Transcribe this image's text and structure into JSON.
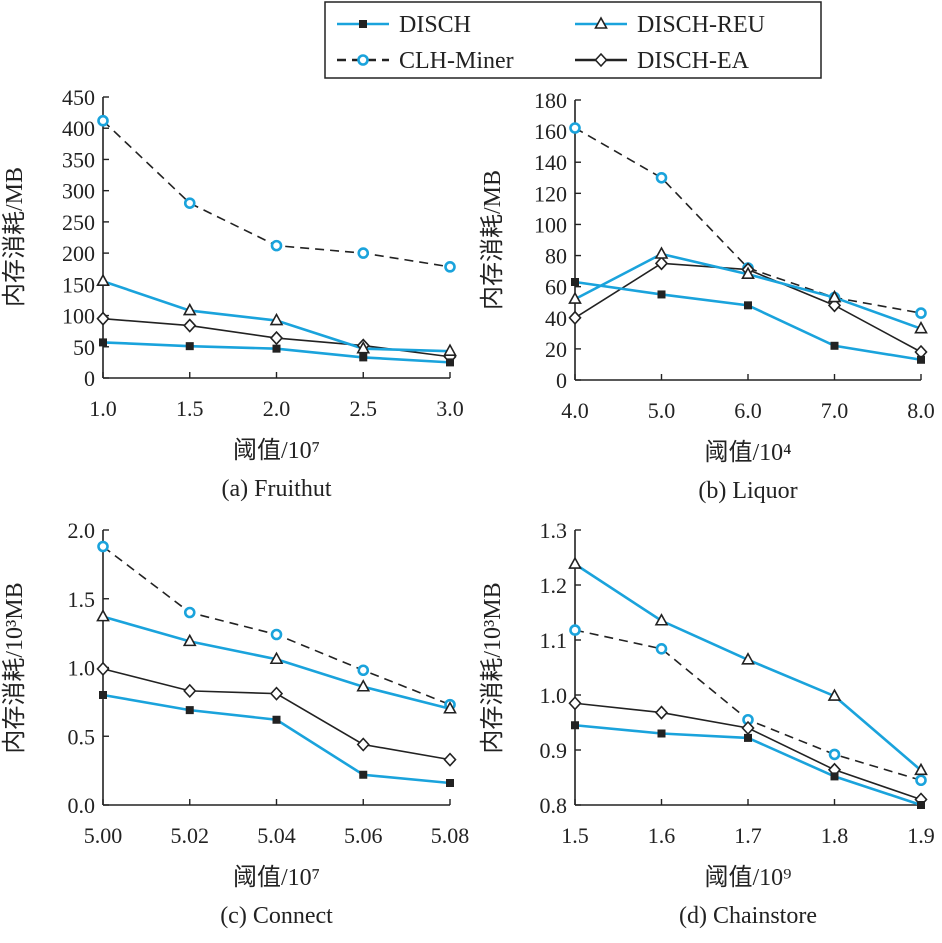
{
  "legend": {
    "items": [
      {
        "label": "DISCH",
        "series": "DISCH"
      },
      {
        "label": "DISCH-REU",
        "series": "DISCH-REU"
      },
      {
        "label": "CLH-Miner",
        "series": "CLH-Miner"
      },
      {
        "label": "DISCH-EA",
        "series": "DISCH-EA"
      }
    ]
  },
  "series_styles": {
    "DISCH": {
      "color": "#1aa3dc",
      "marker": "filled-square",
      "marker_color": "#222222",
      "line": "solid"
    },
    "DISCH-REU": {
      "color": "#1aa3dc",
      "marker": "open-triangle",
      "marker_color": "#222222",
      "line": "solid"
    },
    "CLH-Miner": {
      "color": "#222222",
      "marker": "open-circle",
      "marker_color": "#1aa3dc",
      "line": "dashed"
    },
    "DISCH-EA": {
      "color": "#222222",
      "marker": "open-diamond",
      "marker_color": "#222222",
      "line": "solid"
    }
  },
  "chart_data": [
    {
      "type": "line",
      "caption": "(a) Fruithut",
      "xlabel": "阈值/10⁷",
      "ylabel": "内存消耗/MB",
      "x": [
        1.0,
        1.5,
        2.0,
        2.5,
        3.0
      ],
      "x_tick_labels": [
        "1.0",
        "1.5",
        "2.0",
        "2.5",
        "3.0"
      ],
      "ylim": [
        0,
        450
      ],
      "y_ticks": [
        0,
        50,
        100,
        150,
        200,
        250,
        300,
        350,
        400,
        450
      ],
      "y_tick_labels": [
        "0",
        "50",
        "100",
        "150",
        "200",
        "250",
        "300",
        "350",
        "400",
        "450"
      ],
      "series": [
        {
          "name": "DISCH",
          "values": [
            57,
            51,
            47,
            33,
            25
          ]
        },
        {
          "name": "DISCH-REU",
          "values": [
            155,
            108,
            92,
            47,
            43
          ]
        },
        {
          "name": "CLH-Miner",
          "values": [
            412,
            280,
            212,
            200,
            178
          ]
        },
        {
          "name": "DISCH-EA",
          "values": [
            95,
            84,
            64,
            52,
            34
          ]
        }
      ]
    },
    {
      "type": "line",
      "caption": "(b) Liquor",
      "xlabel": "阈值/10⁴",
      "ylabel": "内存消耗/MB",
      "x": [
        4.0,
        5.0,
        6.0,
        7.0,
        8.0
      ],
      "x_tick_labels": [
        "4.0",
        "5.0",
        "6.0",
        "7.0",
        "8.0"
      ],
      "ylim": [
        0,
        180
      ],
      "y_ticks": [
        0,
        20,
        40,
        60,
        80,
        100,
        120,
        140,
        160,
        180
      ],
      "y_tick_labels": [
        "0",
        "20",
        "40",
        "60",
        "80",
        "100",
        "120",
        "140",
        "160",
        "180"
      ],
      "series": [
        {
          "name": "DISCH",
          "values": [
            63,
            55,
            48,
            22,
            13
          ]
        },
        {
          "name": "DISCH-REU",
          "values": [
            52,
            81,
            68,
            53,
            33
          ]
        },
        {
          "name": "CLH-Miner",
          "values": [
            162,
            130,
            72,
            53,
            43
          ]
        },
        {
          "name": "DISCH-EA",
          "values": [
            40,
            75,
            71,
            48,
            18
          ]
        }
      ]
    },
    {
      "type": "line",
      "caption": "(c) Connect",
      "xlabel": "阈值/10⁷",
      "ylabel": "内存消耗/10³MB",
      "x": [
        5.0,
        5.02,
        5.04,
        5.06,
        5.08
      ],
      "x_tick_labels": [
        "5.00",
        "5.02",
        "5.04",
        "5.06",
        "5.08"
      ],
      "ylim": [
        0,
        2.0
      ],
      "y_ticks": [
        0,
        0.5,
        1.0,
        1.5,
        2.0
      ],
      "y_tick_labels": [
        "0.0",
        "0.5",
        "1.0",
        "1.5",
        "2.0"
      ],
      "series": [
        {
          "name": "DISCH",
          "values": [
            0.8,
            0.69,
            0.62,
            0.22,
            0.16
          ]
        },
        {
          "name": "DISCH-REU",
          "values": [
            1.37,
            1.19,
            1.06,
            0.86,
            0.7
          ]
        },
        {
          "name": "CLH-Miner",
          "values": [
            1.88,
            1.4,
            1.24,
            0.98,
            0.73
          ]
        },
        {
          "name": "DISCH-EA",
          "values": [
            0.99,
            0.83,
            0.81,
            0.44,
            0.33
          ]
        }
      ]
    },
    {
      "type": "line",
      "caption": "(d) Chainstore",
      "xlabel": "阈值/10⁹",
      "ylabel": "内存消耗/10³MB",
      "x": [
        1.5,
        1.6,
        1.7,
        1.8,
        1.9
      ],
      "x_tick_labels": [
        "1.5",
        "1.6",
        "1.7",
        "1.8",
        "1.9"
      ],
      "ylim": [
        0.8,
        1.3
      ],
      "y_ticks": [
        0.8,
        0.9,
        1.0,
        1.1,
        1.2,
        1.3
      ],
      "y_tick_labels": [
        "0.8",
        "0.9",
        "1.0",
        "1.1",
        "1.2",
        "1.3"
      ],
      "series": [
        {
          "name": "DISCH",
          "values": [
            0.945,
            0.93,
            0.922,
            0.852,
            0.8
          ]
        },
        {
          "name": "DISCH-REU",
          "values": [
            1.238,
            1.135,
            1.064,
            0.998,
            0.863
          ]
        },
        {
          "name": "CLH-Miner",
          "values": [
            1.118,
            1.084,
            0.955,
            0.892,
            0.845
          ]
        },
        {
          "name": "DISCH-EA",
          "values": [
            0.985,
            0.968,
            0.94,
            0.864,
            0.81
          ]
        }
      ]
    }
  ]
}
